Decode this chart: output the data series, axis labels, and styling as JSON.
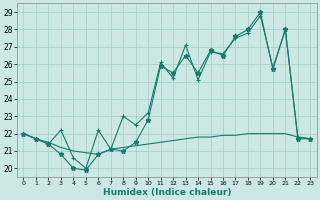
{
  "xlabel": "Humidex (Indice chaleur)",
  "background_color": "#cce8e4",
  "grid_color": "#aacfcb",
  "line_color": "#1a7a6e",
  "ylim": [
    19.5,
    29.5
  ],
  "xlim": [
    -0.5,
    23.5
  ],
  "yticks": [
    20,
    21,
    22,
    23,
    24,
    25,
    26,
    27,
    28,
    29
  ],
  "xticks": [
    0,
    1,
    2,
    3,
    4,
    5,
    6,
    7,
    8,
    9,
    10,
    11,
    12,
    13,
    14,
    15,
    16,
    17,
    18,
    19,
    20,
    21,
    22,
    23
  ],
  "line1_x": [
    0,
    1,
    2,
    3,
    4,
    5,
    6,
    7,
    8,
    9,
    10,
    11,
    12,
    13,
    14,
    15,
    16,
    17,
    18,
    19,
    20,
    21,
    22,
    23
  ],
  "line1_y": [
    22.0,
    21.7,
    21.4,
    22.2,
    20.6,
    20.0,
    22.2,
    21.1,
    23.0,
    22.5,
    23.2,
    26.1,
    25.2,
    27.1,
    25.1,
    26.7,
    26.6,
    27.5,
    27.8,
    28.8,
    25.8,
    28.0,
    21.8,
    21.7
  ],
  "line2_x": [
    0,
    1,
    2,
    3,
    4,
    5,
    6,
    7,
    8,
    9,
    10,
    11,
    12,
    13,
    14,
    15,
    16,
    17,
    18,
    19,
    20,
    21,
    22,
    23
  ],
  "line2_y": [
    22.0,
    21.7,
    21.4,
    20.8,
    20.0,
    19.9,
    20.8,
    21.1,
    21.0,
    21.5,
    22.8,
    25.9,
    25.5,
    26.5,
    25.5,
    26.8,
    26.5,
    27.6,
    28.0,
    29.0,
    25.7,
    28.0,
    21.7,
    21.7
  ],
  "line3_x": [
    0,
    1,
    2,
    3,
    4,
    5,
    6,
    7,
    8,
    9,
    10,
    11,
    12,
    13,
    14,
    15,
    16,
    17,
    18,
    19,
    20,
    21,
    22,
    23
  ],
  "line3_y": [
    22.0,
    21.7,
    21.5,
    21.2,
    21.0,
    20.9,
    20.8,
    21.1,
    21.2,
    21.3,
    21.4,
    21.5,
    21.6,
    21.7,
    21.8,
    21.8,
    21.9,
    21.9,
    22.0,
    22.0,
    22.0,
    22.0,
    21.8,
    21.7
  ]
}
